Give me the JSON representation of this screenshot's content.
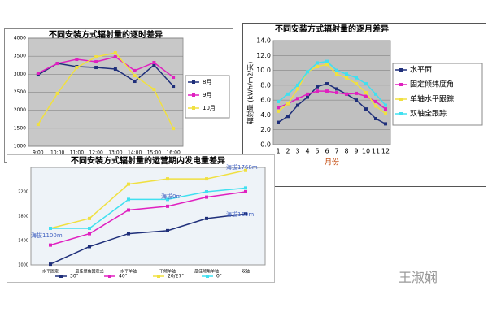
{
  "chart_data": [
    {
      "type": "line",
      "title": "不同安装方式辐射量的逐时差异",
      "categories": [
        "9:00",
        "10:00",
        "11:00",
        "12:00",
        "13:00",
        "14:00",
        "15:00",
        "16:00"
      ],
      "series": [
        {
          "name": "8月",
          "color": "#1f2f7a",
          "values": [
            2984,
            3300,
            3210,
            3187,
            3142,
            2804,
            3255,
            2668
          ]
        },
        {
          "name": "9月",
          "color": "#e020c0",
          "values": [
            3030,
            3300,
            3413,
            3345,
            3480,
            3100,
            3323,
            2916
          ]
        },
        {
          "name": "10月",
          "color": "#f0e040",
          "values": [
            1607,
            2467,
            3187,
            3480,
            3594,
            2962,
            2578,
            1494
          ]
        }
      ],
      "ylim": [
        1000,
        4000
      ],
      "yticks": [
        1000,
        1500,
        2000,
        2500,
        3000,
        3500,
        4000
      ],
      "grid": true,
      "legend": "right"
    },
    {
      "type": "line",
      "title": "不同安装方式辐射量的逐月差异",
      "ylabel": "辐射量 (kWh/m2/天)",
      "xlabel": "月份",
      "categories": [
        "1",
        "2",
        "3",
        "4",
        "5",
        "6",
        "7",
        "8",
        "9",
        "10",
        "11",
        "12"
      ],
      "series": [
        {
          "name": "水平面",
          "color": "#1f2f7a",
          "values": [
            3.0,
            3.8,
            5.3,
            6.4,
            7.8,
            8.2,
            7.5,
            6.8,
            6.0,
            4.8,
            3.5,
            2.8
          ]
        },
        {
          "name": "固定倾纬度角",
          "color": "#e020c0",
          "values": [
            5.0,
            5.5,
            6.2,
            6.8,
            7.2,
            7.2,
            7.0,
            6.8,
            6.9,
            6.5,
            5.8,
            4.8
          ]
        },
        {
          "name": "单轴水平跟踪",
          "color": "#f0e040",
          "values": [
            4.5,
            5.5,
            7.5,
            9.8,
            10.5,
            10.8,
            9.5,
            9.0,
            8.2,
            7.0,
            5.2,
            4.2
          ]
        },
        {
          "name": "双轴全跟踪",
          "color": "#40e0f0",
          "values": [
            5.8,
            6.8,
            8.0,
            9.8,
            11.0,
            11.2,
            10.0,
            9.5,
            9.0,
            8.2,
            6.8,
            5.3
          ]
        }
      ],
      "ylim": [
        0,
        14
      ],
      "yticks": [
        {
          "value": 0,
          "label": "0.0"
        },
        {
          "value": 2,
          "label": "2.0"
        },
        {
          "value": 4,
          "label": "4.0"
        },
        {
          "value": 6,
          "label": "6.0"
        },
        {
          "value": 8,
          "label": "8.0"
        },
        {
          "value": 10,
          "label": "10.0"
        },
        {
          "value": 12,
          "label": "12.0"
        },
        {
          "value": 14,
          "label": "14.0"
        }
      ],
      "grid": true,
      "legend": "right"
    },
    {
      "type": "line",
      "title": "不同安装方式辐射量的运营期内发电量差异",
      "categories": [
        "水平固定",
        "最佳倾角固定式",
        "水平单轴",
        "下倾单轴",
        "最佳倾角单轴",
        "双轴"
      ],
      "series": [
        {
          "name": "30°",
          "color": "#1f2f7a",
          "values": [
            1012,
            1300,
            1512,
            1562,
            1762,
            1837
          ]
        },
        {
          "name": "40°",
          "color": "#e020c0",
          "values": [
            1325,
            1512,
            1900,
            1962,
            2112,
            2200
          ]
        },
        {
          "name": "20/27°",
          "color": "#f0e040",
          "values": [
            1600,
            1762,
            2325,
            2412,
            2412,
            2550
          ]
        },
        {
          "name": "0°",
          "color": "#40e0f0",
          "values": [
            1600,
            1600,
            2075,
            2075,
            2200,
            2262
          ]
        }
      ],
      "ylim": [
        1000,
        2600
      ],
      "yticks": [
        1000,
        1400,
        1800,
        2200
      ],
      "grid": false,
      "legend": "bottom",
      "annotations": [
        "海拔1768m",
        "海拔0m",
        "海拔1100m",
        "海拔160m"
      ]
    }
  ],
  "watermark": "王淑娴"
}
